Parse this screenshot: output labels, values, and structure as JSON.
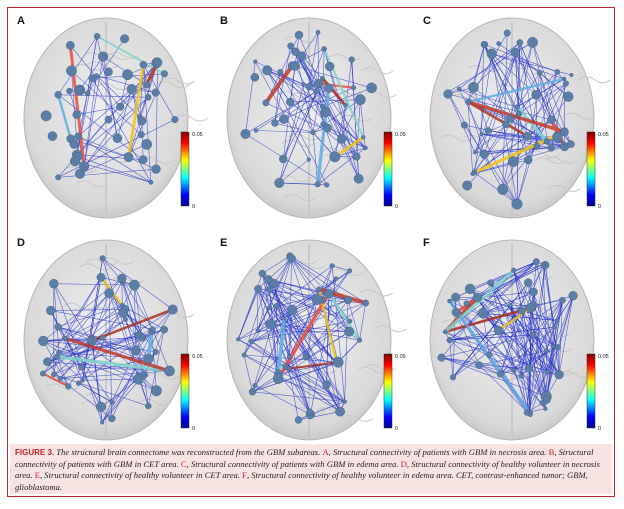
{
  "panels": [
    {
      "label": "A",
      "colorbar_max": "0.05",
      "colorbar_min": "0"
    },
    {
      "label": "B",
      "colorbar_max": "0.05",
      "colorbar_min": "0"
    },
    {
      "label": "C",
      "colorbar_max": "0.05",
      "colorbar_min": "0"
    },
    {
      "label": "D",
      "colorbar_max": "0.05",
      "colorbar_min": "0"
    },
    {
      "label": "E",
      "colorbar_max": "0.05",
      "colorbar_min": "0"
    },
    {
      "label": "F",
      "colorbar_max": "0.05",
      "colorbar_min": "0"
    }
  ],
  "caption": {
    "figure_label": "FIGURE 3.",
    "intro": "The structural brain connectome was reconstructed from the GBM subareas.",
    "items": [
      {
        "letter": "A",
        "text": ", Structural connectivity of patients with GBM in necrosis area."
      },
      {
        "letter": "B",
        "text": ", Structural connectivity of patients with GBM in CET area."
      },
      {
        "letter": "C",
        "text": ", Structural connectivity of patients with GBM in edema area."
      },
      {
        "letter": "D",
        "text": ", Structural connectivity of healthy volunteer in necrosis area."
      },
      {
        "letter": "E",
        "text": ", Structural connectivity of healthy volunteer in CET area."
      },
      {
        "letter": "F",
        "text": ", Structural connectivity of healthy volunteer in edema area."
      }
    ],
    "abbreviations": "CET, contrast-enhanced tumor; GBM, glioblastoma."
  }
}
